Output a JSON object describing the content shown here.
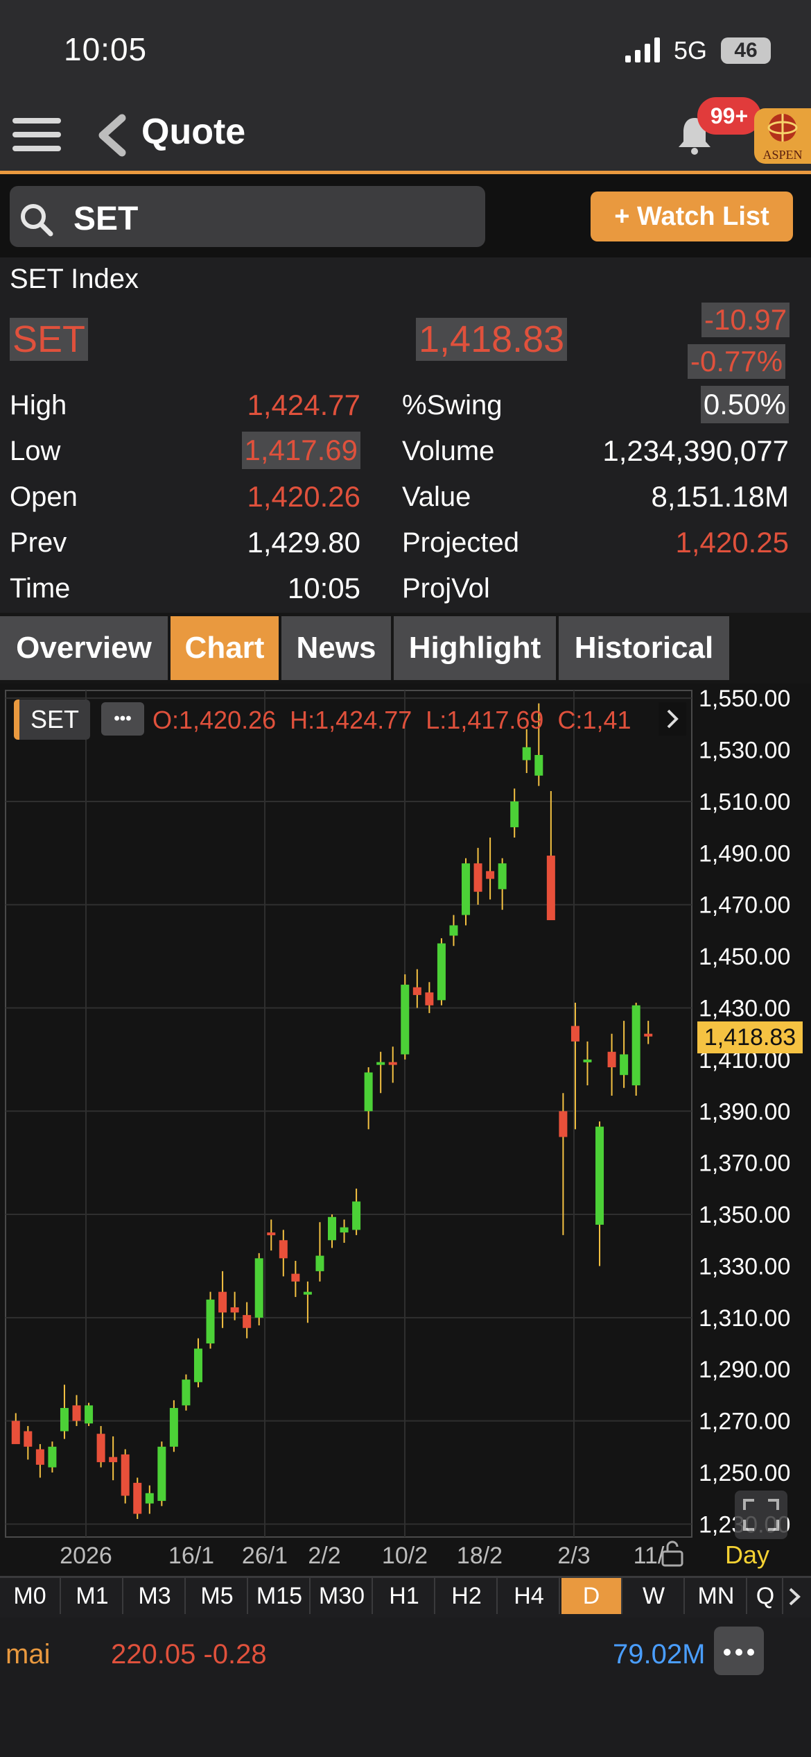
{
  "status": {
    "time": "10:05",
    "network": "5G",
    "battery": "46"
  },
  "header": {
    "title": "Quote",
    "badge": "99+",
    "logo": "ASPEN"
  },
  "search": {
    "value": "SET",
    "watch_label": "+ Watch List"
  },
  "quote": {
    "name": "SET Index",
    "symbol": "SET",
    "last": "1,418.83",
    "change": "-10.97",
    "change_pct": "-0.77%",
    "high_label": "High",
    "high": "1,424.77",
    "low_label": "Low",
    "low": "1,417.69",
    "open_label": "Open",
    "open": "1,420.26",
    "prev_label": "Prev",
    "prev": "1,429.80",
    "time_label": "Time",
    "time": "10:05",
    "swing_label": "%Swing",
    "swing": "0.50%",
    "volume_label": "Volume",
    "volume": "1,234,390,077",
    "value_label": "Value",
    "value": "8,151.18M",
    "projected_label": "Projected",
    "projected": "1,420.25",
    "projvol_label": "ProjVol"
  },
  "tabs": [
    "Overview",
    "Chart",
    "News",
    "Highlight",
    "Historical"
  ],
  "active_tab": "Chart",
  "chart_legend": {
    "symbol": "SET",
    "ohlc": "O:1,420.26  H:1,424.77  L:1,417.69  C:1,41",
    "more": "•••"
  },
  "chart_data": {
    "type": "candlestick",
    "y_ticks": [
      "1,550.00",
      "1,530.00",
      "1,510.00",
      "1,490.00",
      "1,470.00",
      "1,450.00",
      "1,430.00",
      "1,410.00",
      "1,390.00",
      "1,370.00",
      "1,350.00",
      "1,330.00",
      "1,310.00",
      "1,290.00",
      "1,270.00",
      "1,250.00",
      "1,230.00"
    ],
    "ylim": [
      1225,
      1553
    ],
    "x_ticks": [
      "2026",
      "16/1",
      "26/1",
      "2/2",
      "10/2",
      "18/2",
      "2/3",
      "11/"
    ],
    "x_unit_label": "Day",
    "last_price_label": "1,418.83",
    "candles": [
      {
        "o": 1270,
        "h": 1273,
        "l": 1262,
        "c": 1261
      },
      {
        "o": 1266,
        "h": 1268,
        "l": 1255,
        "c": 1260
      },
      {
        "o": 1259,
        "h": 1261,
        "l": 1248,
        "c": 1253
      },
      {
        "o": 1252,
        "h": 1262,
        "l": 1250,
        "c": 1260
      },
      {
        "o": 1266,
        "h": 1284,
        "l": 1263,
        "c": 1275
      },
      {
        "o": 1276,
        "h": 1280,
        "l": 1268,
        "c": 1270
      },
      {
        "o": 1269,
        "h": 1277,
        "l": 1268,
        "c": 1276
      },
      {
        "o": 1265,
        "h": 1268,
        "l": 1252,
        "c": 1254
      },
      {
        "o": 1256,
        "h": 1264,
        "l": 1247,
        "c": 1254
      },
      {
        "o": 1257,
        "h": 1259,
        "l": 1238,
        "c": 1241
      },
      {
        "o": 1246,
        "h": 1248,
        "l": 1232,
        "c": 1234
      },
      {
        "o": 1238,
        "h": 1245,
        "l": 1234,
        "c": 1242
      },
      {
        "o": 1239,
        "h": 1262,
        "l": 1237,
        "c": 1260
      },
      {
        "o": 1260,
        "h": 1278,
        "l": 1258,
        "c": 1275
      },
      {
        "o": 1276,
        "h": 1288,
        "l": 1274,
        "c": 1286
      },
      {
        "o": 1285,
        "h": 1302,
        "l": 1283,
        "c": 1298
      },
      {
        "o": 1300,
        "h": 1320,
        "l": 1298,
        "c": 1317
      },
      {
        "o": 1320,
        "h": 1328,
        "l": 1306,
        "c": 1312
      },
      {
        "o": 1314,
        "h": 1320,
        "l": 1309,
        "c": 1312
      },
      {
        "o": 1311,
        "h": 1316,
        "l": 1302,
        "c": 1306
      },
      {
        "o": 1310,
        "h": 1335,
        "l": 1307,
        "c": 1333
      },
      {
        "o": 1343,
        "h": 1348,
        "l": 1336,
        "c": 1342
      },
      {
        "o": 1340,
        "h": 1344,
        "l": 1326,
        "c": 1333
      },
      {
        "o": 1327,
        "h": 1332,
        "l": 1318,
        "c": 1324
      },
      {
        "o": 1320,
        "h": 1324,
        "l": 1308,
        "c": 1320
      },
      {
        "o": 1328,
        "h": 1347,
        "l": 1324,
        "c": 1334
      },
      {
        "o": 1340,
        "h": 1350,
        "l": 1337,
        "c": 1349
      },
      {
        "o": 1343,
        "h": 1348,
        "l": 1339,
        "c": 1345
      },
      {
        "o": 1344,
        "h": 1360,
        "l": 1342,
        "c": 1355
      },
      {
        "o": 1390,
        "h": 1407,
        "l": 1383,
        "c": 1405
      },
      {
        "o": 1408,
        "h": 1413,
        "l": 1397,
        "c": 1409
      },
      {
        "o": 1409,
        "h": 1415,
        "l": 1401,
        "c": 1408
      },
      {
        "o": 1412,
        "h": 1443,
        "l": 1410,
        "c": 1439
      },
      {
        "o": 1438,
        "h": 1445,
        "l": 1430,
        "c": 1435
      },
      {
        "o": 1436,
        "h": 1440,
        "l": 1428,
        "c": 1431
      },
      {
        "o": 1433,
        "h": 1457,
        "l": 1431,
        "c": 1455
      },
      {
        "o": 1458,
        "h": 1466,
        "l": 1454,
        "c": 1462
      },
      {
        "o": 1466,
        "h": 1488,
        "l": 1462,
        "c": 1486
      },
      {
        "o": 1486,
        "h": 1492,
        "l": 1470,
        "c": 1475
      },
      {
        "o": 1483,
        "h": 1496,
        "l": 1472,
        "c": 1480
      },
      {
        "o": 1476,
        "h": 1488,
        "l": 1468,
        "c": 1486
      },
      {
        "o": 1500,
        "h": 1515,
        "l": 1496,
        "c": 1510
      },
      {
        "o": 1526,
        "h": 1538,
        "l": 1521,
        "c": 1531
      },
      {
        "o": 1520,
        "h": 1548,
        "l": 1516,
        "c": 1528
      },
      {
        "o": 1489,
        "h": 1514,
        "l": 1467,
        "c": 1464
      },
      {
        "o": 1390,
        "h": 1397,
        "l": 1342,
        "c": 1380
      },
      {
        "o": 1423,
        "h": 1432,
        "l": 1383,
        "c": 1417
      },
      {
        "o": 1410,
        "h": 1417,
        "l": 1400,
        "c": 1410
      },
      {
        "o": 1346,
        "h": 1386,
        "l": 1330,
        "c": 1384
      },
      {
        "o": 1413,
        "h": 1420,
        "l": 1396,
        "c": 1407
      },
      {
        "o": 1404,
        "h": 1425,
        "l": 1399,
        "c": 1412
      },
      {
        "o": 1400,
        "h": 1432,
        "l": 1396,
        "c": 1431
      },
      {
        "o": 1420,
        "h": 1425,
        "l": 1416,
        "c": 1419
      }
    ]
  },
  "timeframes": [
    "M0",
    "M1",
    "M3",
    "M5",
    "M15",
    "M30",
    "H1",
    "H2",
    "H4",
    "D",
    "W",
    "MN",
    "Q"
  ],
  "active_timeframe": "D",
  "bottom": {
    "name": "mai",
    "value": "220.05 -0.28",
    "volume": "79.02M"
  },
  "colors": {
    "accent": "#e9993f",
    "up": "#4cd137",
    "down": "#e8503a",
    "price_label_bg": "#f5c242"
  }
}
